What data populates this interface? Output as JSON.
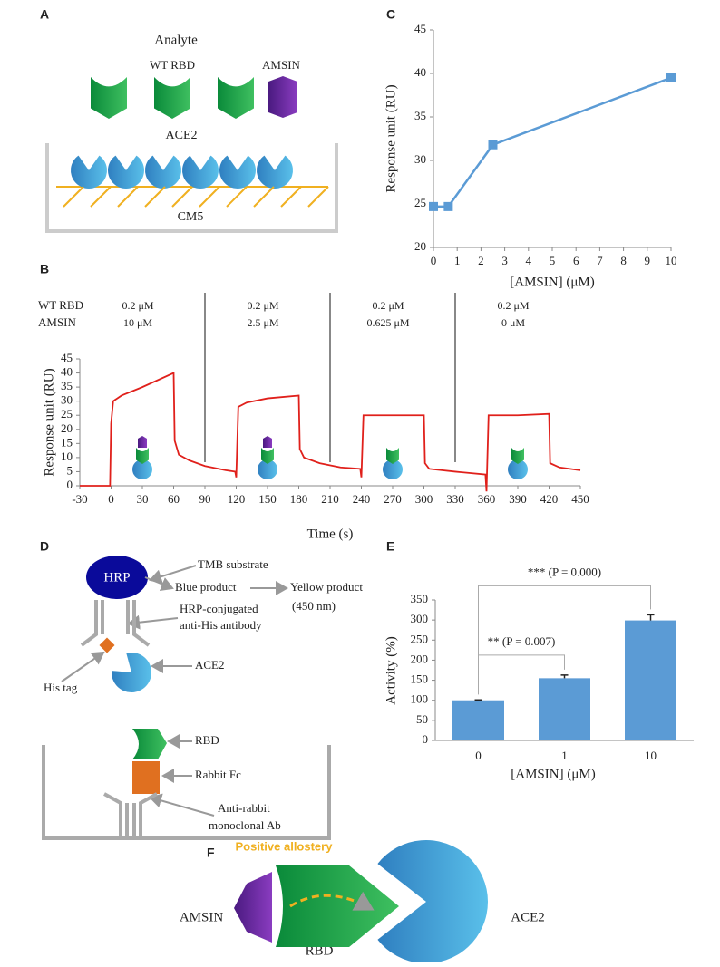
{
  "panel_labels": [
    "A",
    "B",
    "C",
    "D",
    "E",
    "F"
  ],
  "diagram_a": {
    "analyte": "Analyte",
    "wt_rbd": "WT RBD",
    "amsin": "AMSIN",
    "ace2": "ACE2",
    "cm5": "CM5"
  },
  "diagram_d": {
    "hrp": "HRP",
    "tmb": "TMB substrate",
    "blue": "Blue product",
    "yellow": "Yellow product",
    "wavelength": "(450 nm)",
    "conj1": "HRP-conjugated",
    "conj2": "anti-His antibody",
    "his": "His tag",
    "ace2": "ACE2",
    "rbd": "RBD",
    "fc": "Rabbit Fc",
    "anti1": "Anti-rabbit",
    "anti2": "monoclonal Ab"
  },
  "diagram_f": {
    "allostery": "Positive allostery",
    "amsin": "AMSIN",
    "ace2": "ACE2",
    "rbd": "RBD"
  },
  "chart_data": [
    {
      "type": "line",
      "x": [
        0,
        0.625,
        2.5,
        10
      ],
      "values": [
        24.7,
        24.7,
        31.8,
        39.5
      ],
      "color": "#5b9bd5",
      "marker": "square",
      "xlim": [
        0,
        10
      ],
      "ylim": [
        20,
        45
      ],
      "xticks": [
        0,
        1,
        2,
        3,
        4,
        5,
        6,
        7,
        8,
        9,
        10
      ],
      "yticks": [
        20,
        25,
        30,
        35,
        40,
        45
      ],
      "xlabel": "[AMSIN] (μM)",
      "ylabel": "Response unit (RU)"
    },
    {
      "type": "line",
      "x": [
        -30,
        -1,
        0,
        2,
        10,
        30,
        60,
        61,
        65,
        75,
        90,
        110,
        119,
        120,
        122,
        130,
        150,
        180,
        181,
        185,
        200,
        220,
        239,
        240,
        242,
        270,
        300,
        301,
        305,
        330,
        359,
        360,
        362,
        390,
        420,
        421,
        430,
        450
      ],
      "values": [
        0,
        0,
        22,
        30,
        32,
        35,
        40,
        16,
        11,
        9,
        7,
        5.5,
        5,
        3,
        28,
        29.5,
        31,
        32,
        13,
        10,
        8,
        6.5,
        6,
        3,
        25,
        25,
        25,
        8,
        6,
        5,
        4,
        -2,
        25,
        25,
        25.5,
        8,
        6.5,
        5.5
      ],
      "color": "#e0201b",
      "xlim": [
        -30,
        450
      ],
      "ylim": [
        0,
        45
      ],
      "xticks": [
        -30,
        0,
        30,
        60,
        90,
        120,
        150,
        180,
        210,
        240,
        270,
        300,
        330,
        360,
        390,
        420,
        450
      ],
      "yticks": [
        0,
        5,
        10,
        15,
        20,
        25,
        30,
        35,
        40,
        45
      ],
      "xlabel": "Time (s)",
      "ylabel": "Response unit (RU)",
      "row_labels": [
        "WT RBD",
        "AMSIN"
      ],
      "conditions": [
        [
          "0.2 μM",
          "10 μM"
        ],
        [
          "0.2 μM",
          "2.5 μM"
        ],
        [
          "0.2 μM",
          "0.625 μM"
        ],
        [
          "0.2 μM",
          "0 μM"
        ]
      ],
      "dividers": [
        90,
        210,
        330
      ]
    },
    {
      "type": "bar",
      "categories": [
        "0",
        "1",
        "10"
      ],
      "values": [
        100,
        155,
        299
      ],
      "errors": [
        1,
        8,
        14
      ],
      "color": "#5b9bd5",
      "ylim": [
        0,
        350
      ],
      "yticks": [
        0,
        50,
        100,
        150,
        200,
        250,
        300,
        350
      ],
      "xlabel": "[AMSIN] (μM)",
      "ylabel": "Activity (%)",
      "annotations": [
        "** (P = 0.007)",
        "*** (P = 0.000)"
      ]
    }
  ]
}
